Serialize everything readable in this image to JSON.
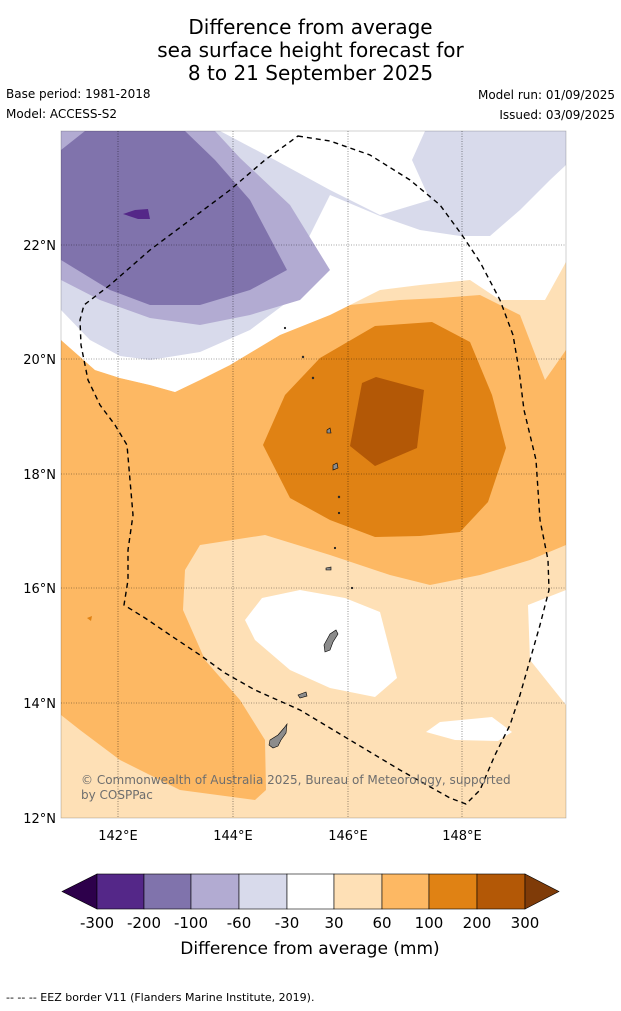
{
  "title": {
    "line1": "Difference from average",
    "line2": "sea surface height forecast for",
    "line3": "8 to 21 September 2025"
  },
  "meta": {
    "base_period": "Base period: 1981-2018",
    "model": "Model: ACCESS-S2",
    "model_run": "Model run: 01/09/2025",
    "issued": "Issued: 03/09/2025"
  },
  "map": {
    "lat_labels": [
      "22°N",
      "20°N",
      "18°N",
      "16°N",
      "14°N",
      "12°N"
    ],
    "lon_labels": [
      "142°E",
      "144°E",
      "146°E",
      "148°E"
    ],
    "copyright_line1": "© Commonwealth of Australia 2025, Bureau of Meteorology, supported",
    "copyright_line2": "by COSPPac"
  },
  "colorbar": {
    "ticks": [
      "-300",
      "-200",
      "-100",
      "-60",
      "-30",
      "30",
      "60",
      "100",
      "200",
      "300"
    ],
    "label": "Difference from average (mm)",
    "colors": {
      "below_min": "#2d004b",
      "neg_300_200": "#542788",
      "neg_200_100": "#8073ac",
      "neg_100_60": "#b2abd2",
      "neg_60_30": "#d8daeb",
      "neutral": "#ffffff",
      "pos_30_60": "#fee0b6",
      "pos_60_100": "#fdb863",
      "pos_100_200": "#e08214",
      "pos_200_300": "#b35806",
      "above_max": "#7f3b08"
    }
  },
  "footer": "--  --  -- EEZ border V11 (Flanders Marine Institute, 2019)."
}
